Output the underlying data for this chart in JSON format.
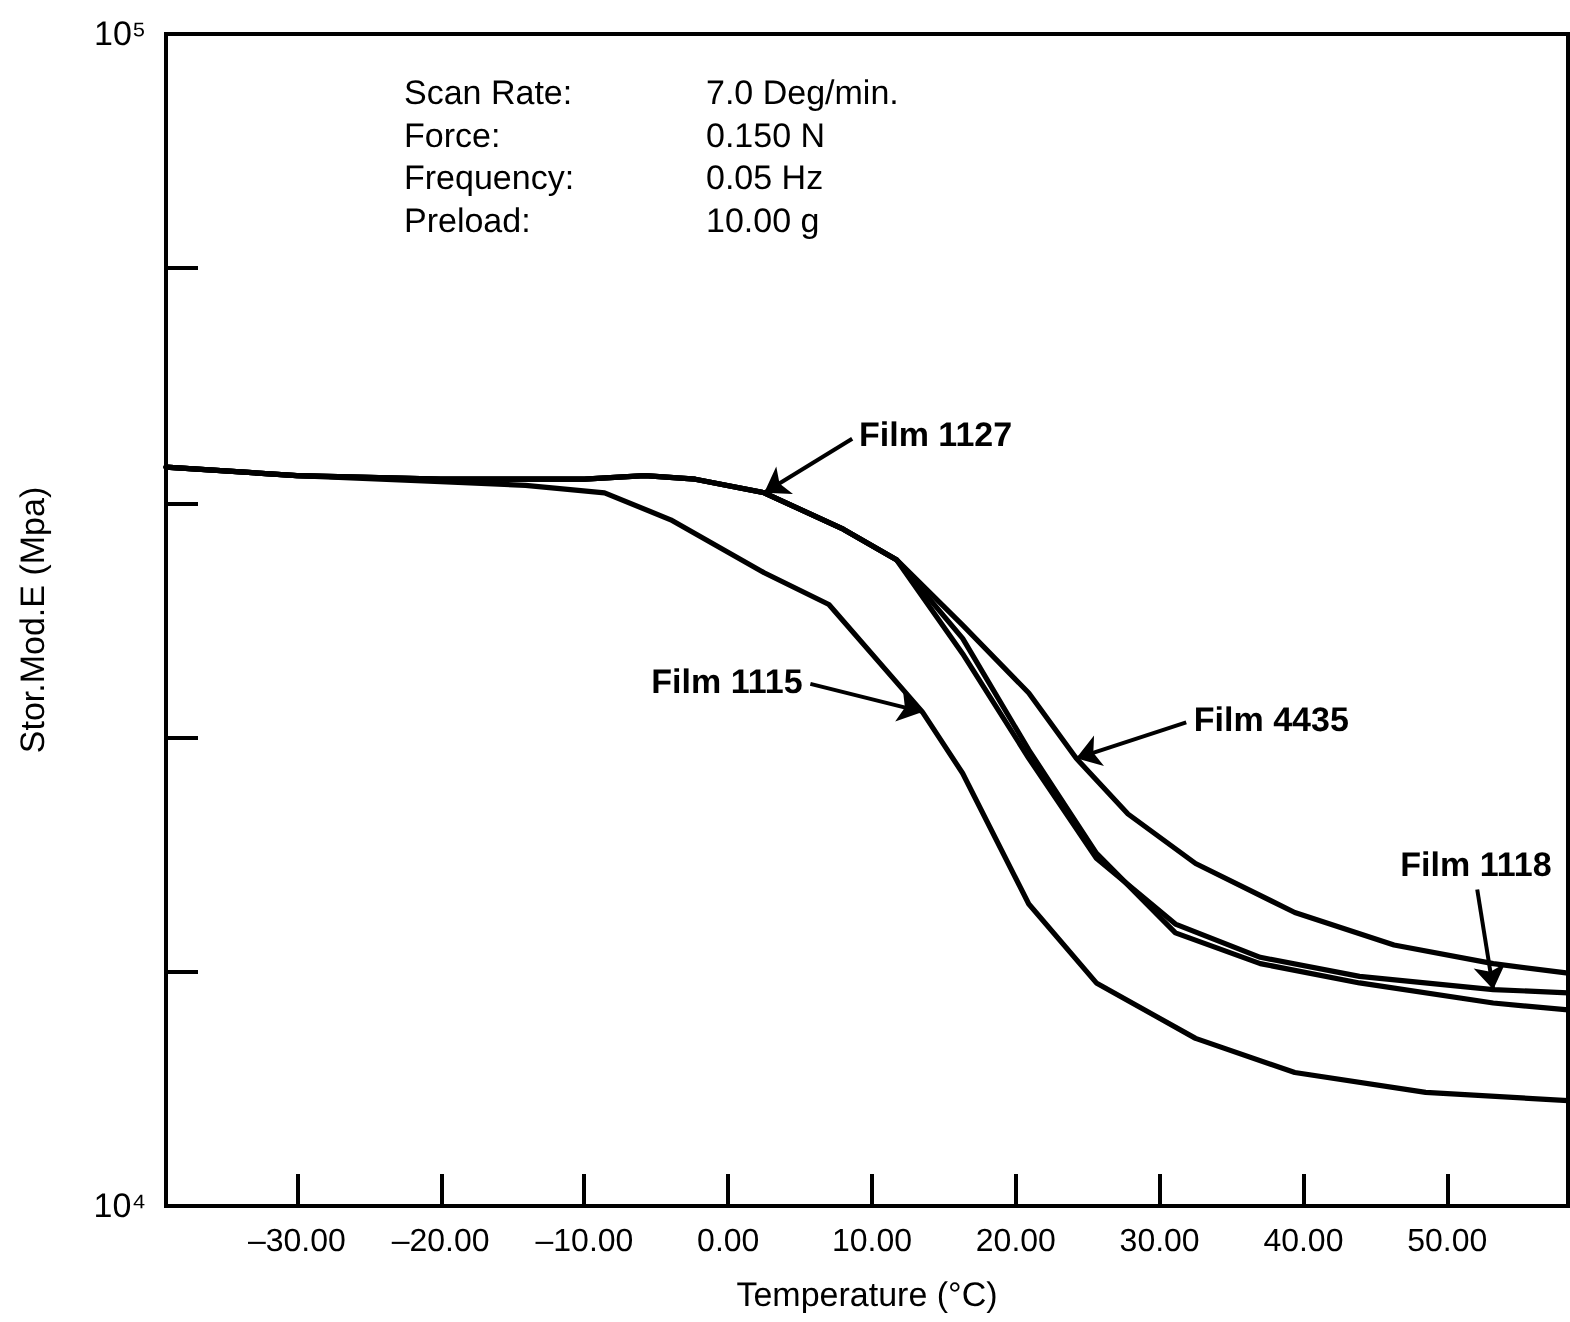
{
  "chart_data": {
    "type": "line",
    "xlabel": "Temperature (°C)",
    "ylabel": "Stor.Mod.E (Mpa)",
    "log": "y",
    "xlim": [
      -39.1,
      58.4
    ],
    "ylim": [
      10000,
      100000
    ],
    "xticks": [
      {
        "value": -30,
        "label": "–30.00"
      },
      {
        "value": -20,
        "label": "–20.00"
      },
      {
        "value": -10,
        "label": "–10.00"
      },
      {
        "value": 0,
        "label": "0.00"
      },
      {
        "value": 10,
        "label": "10.00"
      },
      {
        "value": 20,
        "label": "20.00"
      },
      {
        "value": 30,
        "label": "30.00"
      },
      {
        "value": 40,
        "label": "40.00"
      },
      {
        "value": 50,
        "label": "50.00"
      }
    ],
    "yticks": [
      {
        "value": 10000,
        "label": "10⁴"
      },
      {
        "value": 15849,
        "label": null
      },
      {
        "value": 25119,
        "label": null
      },
      {
        "value": 39811,
        "label": null
      },
      {
        "value": 63096,
        "label": null
      },
      {
        "value": 100000,
        "label": "10⁵"
      }
    ],
    "grid": false,
    "marker": "none",
    "line_style": "solid",
    "series": [
      {
        "color": "#000000",
        "x": [
          -39.1,
          -30,
          -20,
          -10,
          -5.8,
          -2.3,
          2.5,
          8,
          11.7,
          16.3,
          20.9,
          24.2,
          27.8,
          32.5,
          39.4,
          46.3,
          53.2,
          58.4
        ],
        "values": [
          42700,
          42000,
          41700,
          41700,
          42000,
          41700,
          40600,
          37800,
          35600,
          31300,
          27400,
          24100,
          21600,
          19600,
          17800,
          16700,
          16100,
          15800
        ]
      },
      {
        "color": "#000000",
        "x": [
          -39.1,
          -30,
          -20,
          -10,
          -5.8,
          -2.3,
          2.5,
          8,
          11.7,
          16.3,
          20.9,
          25.6,
          31.1,
          37,
          43.9,
          53.2,
          58.4
        ],
        "values": [
          42700,
          42000,
          41700,
          41700,
          42000,
          41700,
          40600,
          37800,
          35600,
          29600,
          24100,
          19800,
          17400,
          16300,
          15700,
          15300,
          15200
        ]
      },
      {
        "color": "#000000",
        "x": [
          -39.1,
          -30,
          -20,
          -10,
          -5.8,
          -2.3,
          2.5,
          8,
          11.7,
          16.3,
          20.9,
          25.6,
          31.1,
          37,
          43.9,
          53.2,
          58.4
        ],
        "values": [
          42700,
          42000,
          41700,
          41700,
          42000,
          41700,
          40600,
          37800,
          35600,
          30500,
          24500,
          20000,
          17100,
          16100,
          15500,
          14900,
          14700
        ]
      },
      {
        "color": "#000000",
        "x": [
          -39.1,
          -30,
          -20,
          -14.1,
          -8.6,
          -4,
          2.5,
          7,
          13.5,
          16.3,
          20.9,
          25.6,
          32.5,
          39.4,
          48.5,
          58.4
        ],
        "values": [
          42700,
          42000,
          41500,
          41200,
          40600,
          38500,
          34700,
          32600,
          26400,
          23400,
          18100,
          15500,
          13900,
          13000,
          12500,
          12300
        ]
      }
    ],
    "annotations": [
      "Scan Rate: 7.0 Deg/min.",
      "Force: 0.150 N",
      "Frequency: 0.05 Hz",
      "Preload: 10.00 g",
      {
        "text": "Film 1127",
        "x": 2.5,
        "y": 40600
      },
      {
        "text": "Film 1115",
        "x": 13.5,
        "y": 26400
      },
      {
        "text": "Film 4435",
        "x": 24.2,
        "y": 24100
      },
      {
        "text": "Film 1118",
        "x": 53.2,
        "y": 15300
      }
    ]
  }
}
